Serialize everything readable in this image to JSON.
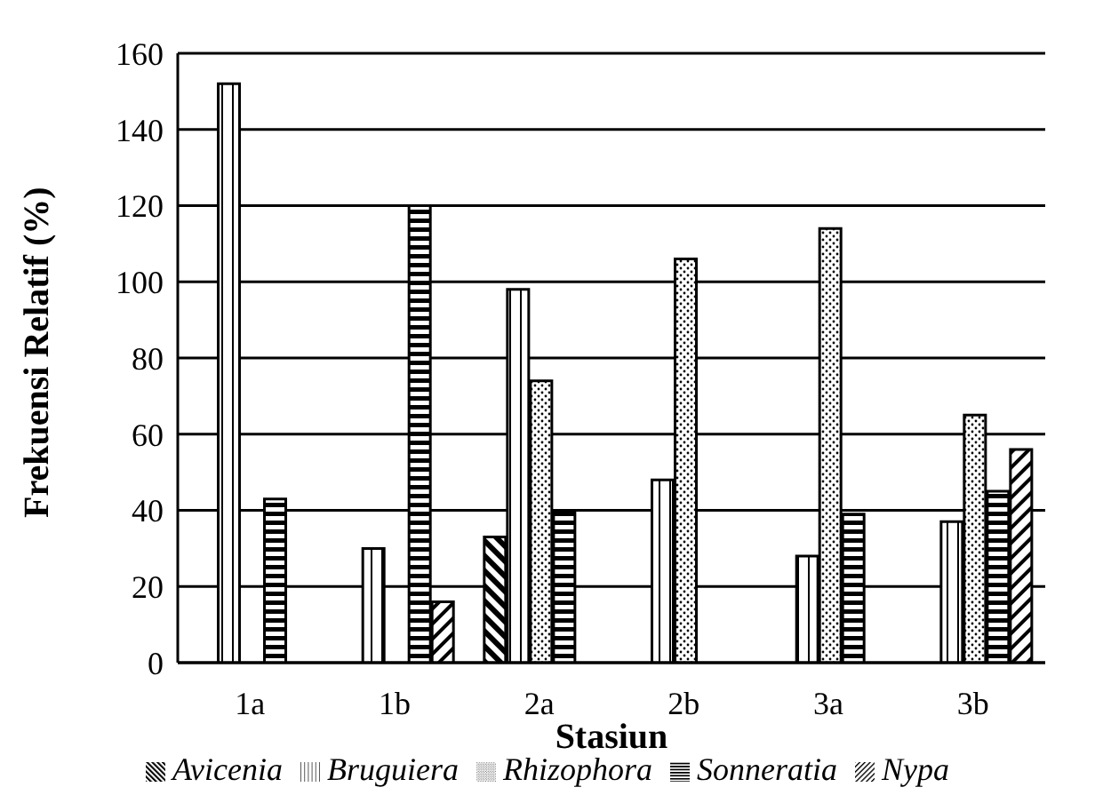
{
  "chart_data": {
    "type": "bar",
    "xlabel": "Stasiun",
    "ylabel": "Frekuensi Relatif (%)",
    "categories": [
      "1a",
      "1b",
      "2a",
      "2b",
      "3a",
      "3b"
    ],
    "series": [
      {
        "name": "Avicenia",
        "color": "#000000",
        "values": [
          null,
          null,
          33,
          null,
          null,
          null
        ]
      },
      {
        "name": "Bruguiera",
        "color": "#000000",
        "values": [
          152,
          30,
          98,
          48,
          28,
          37
        ]
      },
      {
        "name": "Rhizophora",
        "color": "#000000",
        "values": [
          null,
          null,
          74,
          106,
          114,
          65
        ]
      },
      {
        "name": "Sonneratia",
        "color": "#000000",
        "values": [
          43,
          120,
          40,
          null,
          39,
          45
        ]
      },
      {
        "name": "Nypa",
        "color": "#000000",
        "values": [
          null,
          16,
          null,
          null,
          null,
          56
        ]
      }
    ],
    "ylim": [
      0,
      160
    ],
    "yticks": [
      0,
      20,
      40,
      60,
      80,
      100,
      120,
      140,
      160
    ],
    "grid": "y",
    "legend": "bottom"
  }
}
